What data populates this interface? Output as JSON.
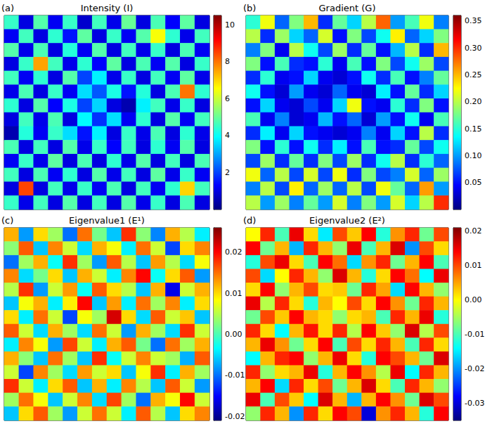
{
  "chart_data": [
    {
      "type": "heatmap",
      "panel": "(a)",
      "title": "Intensity (I)",
      "tick_labels": false,
      "colorbar_lim": [
        0,
        10.5
      ],
      "colorbar_ticks": [
        2,
        4,
        6,
        8,
        10
      ],
      "cells": [
        [
          4.5,
          1.0,
          4.8,
          1.2,
          4.5,
          0.8,
          4.6,
          1.1,
          5.0,
          1.0,
          4.7,
          1.3,
          4.9,
          1.0
        ],
        [
          1.2,
          4.6,
          1.0,
          4.4,
          1.5,
          4.9,
          1.0,
          4.5,
          1.2,
          4.8,
          6.5,
          4.4,
          1.1,
          4.6
        ],
        [
          4.8,
          1.1,
          4.7,
          1.0,
          4.3,
          1.2,
          4.8,
          1.0,
          4.6,
          1.1,
          4.5,
          1.0,
          4.7,
          1.2
        ],
        [
          1.0,
          4.5,
          7.5,
          4.6,
          1.1,
          4.4,
          1.3,
          4.9,
          1.0,
          4.7,
          1.2,
          4.8,
          1.0,
          4.5
        ],
        [
          4.6,
          1.2,
          4.4,
          1.0,
          4.8,
          2.0,
          3.8,
          1.1,
          4.5,
          1.0,
          4.6,
          1.2,
          4.9,
          1.1
        ],
        [
          1.1,
          4.7,
          1.0,
          4.5,
          1.2,
          3.6,
          2.2,
          4.2,
          1.5,
          4.3,
          1.0,
          4.7,
          8.0,
          4.4
        ],
        [
          4.4,
          1.0,
          4.8,
          1.3,
          4.2,
          2.0,
          3.5,
          1.0,
          0.5,
          3.8,
          4.6,
          1.1,
          4.5,
          1.0
        ],
        [
          1.0,
          4.6,
          1.1,
          4.7,
          1.0,
          3.9,
          1.8,
          3.6,
          1.2,
          4.4,
          1.0,
          4.8,
          1.2,
          4.6
        ],
        [
          0.5,
          4.3,
          1.2,
          4.5,
          3.6,
          1.5,
          3.8,
          1.0,
          4.5,
          1.1,
          4.7,
          1.0,
          4.4,
          1.1
        ],
        [
          4.7,
          1.0,
          4.6,
          1.0,
          4.8,
          1.1,
          4.5,
          1.3,
          4.6,
          1.0,
          4.4,
          1.2,
          4.8,
          1.0
        ],
        [
          1.2,
          4.5,
          1.1,
          4.9,
          1.0,
          4.7,
          1.0,
          4.4,
          1.1,
          4.8,
          1.0,
          4.6,
          1.0,
          4.7
        ],
        [
          4.6,
          1.0,
          4.7,
          1.2,
          4.4,
          1.0,
          4.8,
          1.1,
          4.6,
          1.0,
          4.9,
          1.1,
          4.5,
          1.2
        ],
        [
          1.0,
          8.5,
          1.0,
          4.6,
          1.1,
          4.5,
          1.2,
          4.7,
          1.0,
          4.6,
          1.2,
          4.4,
          7.0,
          4.6
        ],
        [
          4.5,
          1.1,
          4.6,
          1.0,
          4.8,
          1.0,
          4.6,
          1.0,
          4.8,
          1.1,
          4.5,
          1.0,
          4.7,
          1.0
        ]
      ]
    },
    {
      "type": "heatmap",
      "panel": "(b)",
      "title": "Gradient (G)",
      "tick_labels": false,
      "colorbar_lim": [
        0,
        0.36
      ],
      "colorbar_ticks": [
        0.05,
        {
          "value": 0.1,
          "label": "0.10"
        },
        0.15,
        {
          "value": 0.2,
          "label": "0.20"
        },
        0.25,
        {
          "value": 0.3,
          "label": "0.30"
        },
        0.35
      ],
      "cells": [
        [
          0.15,
          0.22,
          0.08,
          0.18,
          0.25,
          0.06,
          0.17,
          0.12,
          0.2,
          0.28,
          0.1,
          0.16,
          0.22,
          0.09
        ],
        [
          0.2,
          0.06,
          0.19,
          0.12,
          0.08,
          0.21,
          0.05,
          0.18,
          0.07,
          0.14,
          0.23,
          0.08,
          0.12,
          0.18
        ],
        [
          0.09,
          0.18,
          0.04,
          0.2,
          0.14,
          0.07,
          0.19,
          0.06,
          0.17,
          0.05,
          0.11,
          0.2,
          0.06,
          0.25
        ],
        [
          0.18,
          0.05,
          0.16,
          0.06,
          0.05,
          0.15,
          0.04,
          0.16,
          0.05,
          0.18,
          0.07,
          0.14,
          0.19,
          0.07
        ],
        [
          0.06,
          0.15,
          0.04,
          0.05,
          0.12,
          0.04,
          0.03,
          0.05,
          0.14,
          0.06,
          0.16,
          0.05,
          0.09,
          0.17
        ],
        [
          0.14,
          0.05,
          0.03,
          0.1,
          0.04,
          0.03,
          0.08,
          0.04,
          0.03,
          0.13,
          0.05,
          0.17,
          0.06,
          0.12
        ],
        [
          0.05,
          0.12,
          0.04,
          0.03,
          0.07,
          0.04,
          0.12,
          0.22,
          0.05,
          0.04,
          0.15,
          0.06,
          0.18,
          0.05
        ],
        [
          0.16,
          0.04,
          0.09,
          0.03,
          0.04,
          0.11,
          0.05,
          0.08,
          0.03,
          0.1,
          0.05,
          0.14,
          0.04,
          0.16
        ],
        [
          0.06,
          0.13,
          0.04,
          0.12,
          0.05,
          0.04,
          0.03,
          0.04,
          0.09,
          0.04,
          0.12,
          0.05,
          0.2,
          0.06
        ],
        [
          0.18,
          0.05,
          0.15,
          0.05,
          0.14,
          0.06,
          0.13,
          0.05,
          0.16,
          0.05,
          0.06,
          0.17,
          0.07,
          0.14
        ],
        [
          0.07,
          0.19,
          0.06,
          0.17,
          0.06,
          0.18,
          0.07,
          0.19,
          0.06,
          0.14,
          0.2,
          0.06,
          0.15,
          0.08
        ],
        [
          0.22,
          0.08,
          0.2,
          0.07,
          0.21,
          0.07,
          0.22,
          0.06,
          0.18,
          0.07,
          0.09,
          0.21,
          0.08,
          0.19
        ],
        [
          0.09,
          0.2,
          0.07,
          0.23,
          0.08,
          0.19,
          0.08,
          0.2,
          0.07,
          0.22,
          0.17,
          0.08,
          0.26,
          0.1
        ],
        [
          0.2,
          0.1,
          0.19,
          0.09,
          0.17,
          0.1,
          0.21,
          0.09,
          0.18,
          0.1,
          0.21,
          0.12,
          0.2,
          0.3
        ]
      ]
    },
    {
      "type": "heatmap",
      "panel": "(c)",
      "title": "Eigenvalue1 (E¹)",
      "tick_labels": false,
      "colorbar_lim": [
        -0.021,
        0.026
      ],
      "colorbar_ticks": [
        -0.02,
        -0.01,
        {
          "value": 0,
          "label": "0.00"
        },
        0.01,
        0.02
      ],
      "cells": [
        [
          0.012,
          -0.008,
          0.01,
          0.004,
          -0.01,
          0.015,
          0.002,
          -0.006,
          0.018,
          0.003,
          -0.009,
          0.012,
          0.005,
          -0.004
        ],
        [
          0.003,
          0.016,
          -0.006,
          0.014,
          0.006,
          -0.005,
          0.012,
          0.008,
          -0.004,
          0.015,
          0.006,
          -0.012,
          0.01,
          0.014
        ],
        [
          -0.01,
          0.004,
          0.012,
          -0.003,
          0.018,
          0.004,
          -0.008,
          0.016,
          0.005,
          -0.006,
          0.013,
          0.005,
          -0.005,
          0.008
        ],
        [
          0.014,
          -0.005,
          0.002,
          0.01,
          -0.006,
          0.012,
          0.006,
          -0.004,
          0.014,
          0.02,
          -0.003,
          0.01,
          0.016,
          -0.008
        ],
        [
          0.005,
          0.018,
          -0.008,
          0.006,
          0.013,
          -0.003,
          0.016,
          0.01,
          0.005,
          -0.006,
          0.012,
          -0.016,
          0.006,
          0.012
        ],
        [
          -0.006,
          0.008,
          0.012,
          -0.004,
          0.009,
          0.02,
          -0.006,
          0.013,
          -0.004,
          0.015,
          0.004,
          0.014,
          -0.004,
          0.01
        ],
        [
          0.01,
          -0.004,
          0.015,
          0.006,
          -0.012,
          0.008,
          0.004,
          0.022,
          0.01,
          -0.005,
          0.016,
          0.006,
          0.011,
          -0.006
        ],
        [
          0.016,
          0.006,
          -0.005,
          0.012,
          0.004,
          -0.005,
          0.015,
          0.006,
          -0.008,
          0.012,
          0.004,
          -0.005,
          0.018,
          0.006
        ],
        [
          -0.004,
          0.014,
          0.008,
          -0.008,
          0.017,
          0.006,
          -0.004,
          0.012,
          0.016,
          0.002,
          -0.01,
          0.015,
          0.004,
          0.012
        ],
        [
          0.012,
          0.003,
          -0.006,
          0.015,
          0.004,
          -0.006,
          0.018,
          -0.003,
          0.006,
          0.014,
          0.006,
          0.004,
          -0.007,
          0.016
        ],
        [
          0.006,
          -0.012,
          0.014,
          0.004,
          -0.005,
          0.013,
          0.006,
          0.01,
          -0.006,
          0.008,
          0.018,
          -0.004,
          0.012,
          0.004
        ],
        [
          0.018,
          0.006,
          -0.004,
          0.01,
          0.016,
          -0.006,
          0.012,
          -0.004,
          0.014,
          0.005,
          -0.006,
          0.016,
          0.006,
          -0.008
        ],
        [
          0.004,
          0.015,
          0.008,
          -0.006,
          0.006,
          0.014,
          -0.005,
          0.017,
          0.004,
          -0.01,
          0.012,
          0.008,
          0.02,
          0.006
        ],
        [
          -0.006,
          0.01,
          0.016,
          0.004,
          -0.008,
          0.006,
          0.015,
          0.006,
          -0.004,
          0.016,
          0.005,
          -0.006,
          0.01,
          0.014
        ]
      ]
    },
    {
      "type": "heatmap",
      "panel": "(d)",
      "title": "Eigenvalue2 (E²)",
      "tick_labels": false,
      "colorbar_lim": [
        -0.035,
        0.021
      ],
      "colorbar_ticks": [
        -0.03,
        -0.02,
        -0.01,
        {
          "value": 0,
          "label": "0.00"
        },
        0.01,
        0.02
      ],
      "cells": [
        [
          0.0,
          0.012,
          -0.01,
          0.015,
          0.002,
          -0.015,
          0.01,
          0.003,
          0.014,
          -0.012,
          0.006,
          0.012,
          -0.008,
          0.01
        ],
        [
          0.014,
          -0.008,
          0.004,
          -0.018,
          0.012,
          0.004,
          -0.006,
          0.015,
          -0.01,
          0.004,
          0.016,
          -0.02,
          0.01,
          0.002
        ],
        [
          -0.012,
          0.01,
          0.015,
          0.002,
          -0.01,
          0.014,
          0.008,
          -0.016,
          0.006,
          0.012,
          -0.008,
          0.004,
          0.014,
          -0.01
        ],
        [
          0.01,
          -0.016,
          0.0,
          0.012,
          0.004,
          -0.006,
          0.016,
          0.004,
          -0.012,
          0.002,
          0.014,
          0.008,
          -0.014,
          0.015
        ],
        [
          0.002,
          0.014,
          -0.006,
          0.004,
          0.01,
          0.002,
          0.003,
          -0.008,
          0.012,
          0.005,
          -0.016,
          0.014,
          0.004,
          -0.006
        ],
        [
          0.015,
          -0.004,
          0.012,
          0.002,
          -0.012,
          0.004,
          0.0,
          0.01,
          0.002,
          0.014,
          0.006,
          -0.008,
          0.012,
          0.004
        ],
        [
          -0.008,
          0.01,
          0.003,
          0.014,
          0.004,
          0.002,
          -0.006,
          0.002,
          0.004,
          -0.01,
          0.012,
          0.004,
          0.015,
          -0.012
        ],
        [
          0.012,
          0.002,
          -0.014,
          0.004,
          0.013,
          0.002,
          0.012,
          -0.004,
          0.014,
          0.003,
          -0.006,
          0.016,
          -0.004,
          0.01
        ],
        [
          0.004,
          0.015,
          0.006,
          -0.008,
          0.002,
          0.014,
          -0.01,
          0.01,
          0.002,
          0.012,
          0.004,
          -0.01,
          0.012,
          0.002
        ],
        [
          -0.014,
          0.004,
          0.012,
          0.014,
          -0.006,
          0.004,
          0.015,
          0.002,
          -0.012,
          0.014,
          0.01,
          0.004,
          -0.008,
          0.016
        ],
        [
          0.012,
          -0.006,
          0.002,
          0.004,
          0.015,
          -0.012,
          0.004,
          0.014,
          0.006,
          -0.004,
          0.015,
          -0.014,
          0.012,
          0.004
        ],
        [
          0.004,
          0.014,
          -0.016,
          0.012,
          0.002,
          0.01,
          -0.008,
          0.004,
          0.016,
          0.002,
          -0.01,
          0.012,
          0.004,
          -0.006
        ],
        [
          0.015,
          -0.01,
          0.01,
          0.003,
          -0.014,
          0.016,
          0.004,
          -0.018,
          0.004,
          0.014,
          0.006,
          -0.008,
          0.016,
          0.01
        ],
        [
          -0.006,
          0.012,
          0.004,
          -0.02,
          0.012,
          0.002,
          0.014,
          0.01,
          -0.03,
          0.006,
          0.012,
          0.004,
          -0.012,
          0.014
        ]
      ]
    }
  ]
}
